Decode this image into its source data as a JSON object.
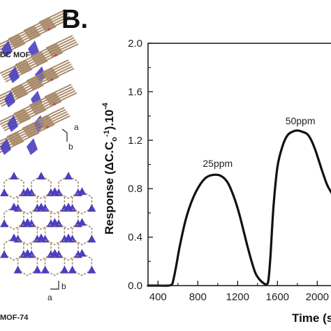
{
  "panel_letter": "B.",
  "left_panel": {
    "top_label": "DC MOF",
    "bottom_label": "MOF-74",
    "top_axes": {
      "a": "a",
      "b": "b"
    },
    "bottom_axes": {
      "a": "a",
      "b": "b"
    }
  },
  "colors": {
    "line": "#111111",
    "axis": "#222222",
    "node": "#4b3fbf",
    "linker": "#a88a6a",
    "oxygen": "#d04040"
  },
  "chart_data": {
    "type": "line",
    "title": "",
    "xlabel": "Time (s",
    "ylabel": "Response (ΔC.C₀⁻¹).10⁻⁴",
    "ylabel_parts": {
      "main": "Response (ΔC.C",
      "sub": "o",
      "sup1": "-1",
      "mid": ").10",
      "sup2": "-4"
    },
    "xlim": [
      300,
      2250
    ],
    "ylim": [
      0.0,
      2.0
    ],
    "xticks": [
      "400",
      "800",
      "1200",
      "1600",
      "2000"
    ],
    "xtick_values": [
      400,
      800,
      1200,
      1600,
      2000
    ],
    "yticks": [
      "0.0",
      "0.4",
      "0.8",
      "1.2",
      "1.6",
      "2.0"
    ],
    "ytick_values": [
      0.0,
      0.4,
      0.8,
      1.2,
      1.6,
      2.0
    ],
    "grid": false,
    "annotations": [
      {
        "text": "25ppm",
        "x": 1000,
        "y": 0.98
      },
      {
        "text": "50ppm",
        "x": 1830,
        "y": 1.33
      }
    ],
    "series": [
      {
        "x": [
          300,
          400,
          500,
          540,
          555,
          580,
          620,
          680,
          750,
          820,
          880,
          930,
          980,
          1020,
          1060,
          1100,
          1140,
          1180,
          1220,
          1260,
          1300,
          1340,
          1380,
          1420,
          1460,
          1490,
          1510,
          1530,
          1560,
          1600,
          1650,
          1700,
          1750,
          1800,
          1850,
          1900,
          1940,
          1980,
          2020,
          2060,
          2100,
          2140,
          2180,
          2250
        ],
        "y": [
          0.0,
          0.0,
          0.0,
          0.01,
          0.05,
          0.15,
          0.33,
          0.55,
          0.72,
          0.83,
          0.89,
          0.91,
          0.915,
          0.91,
          0.89,
          0.85,
          0.78,
          0.69,
          0.58,
          0.45,
          0.32,
          0.2,
          0.1,
          0.05,
          0.02,
          0.01,
          0.05,
          0.25,
          0.65,
          0.98,
          1.15,
          1.24,
          1.27,
          1.28,
          1.27,
          1.25,
          1.2,
          1.12,
          1.02,
          0.92,
          0.83,
          0.77,
          0.72,
          0.66
        ]
      }
    ]
  }
}
